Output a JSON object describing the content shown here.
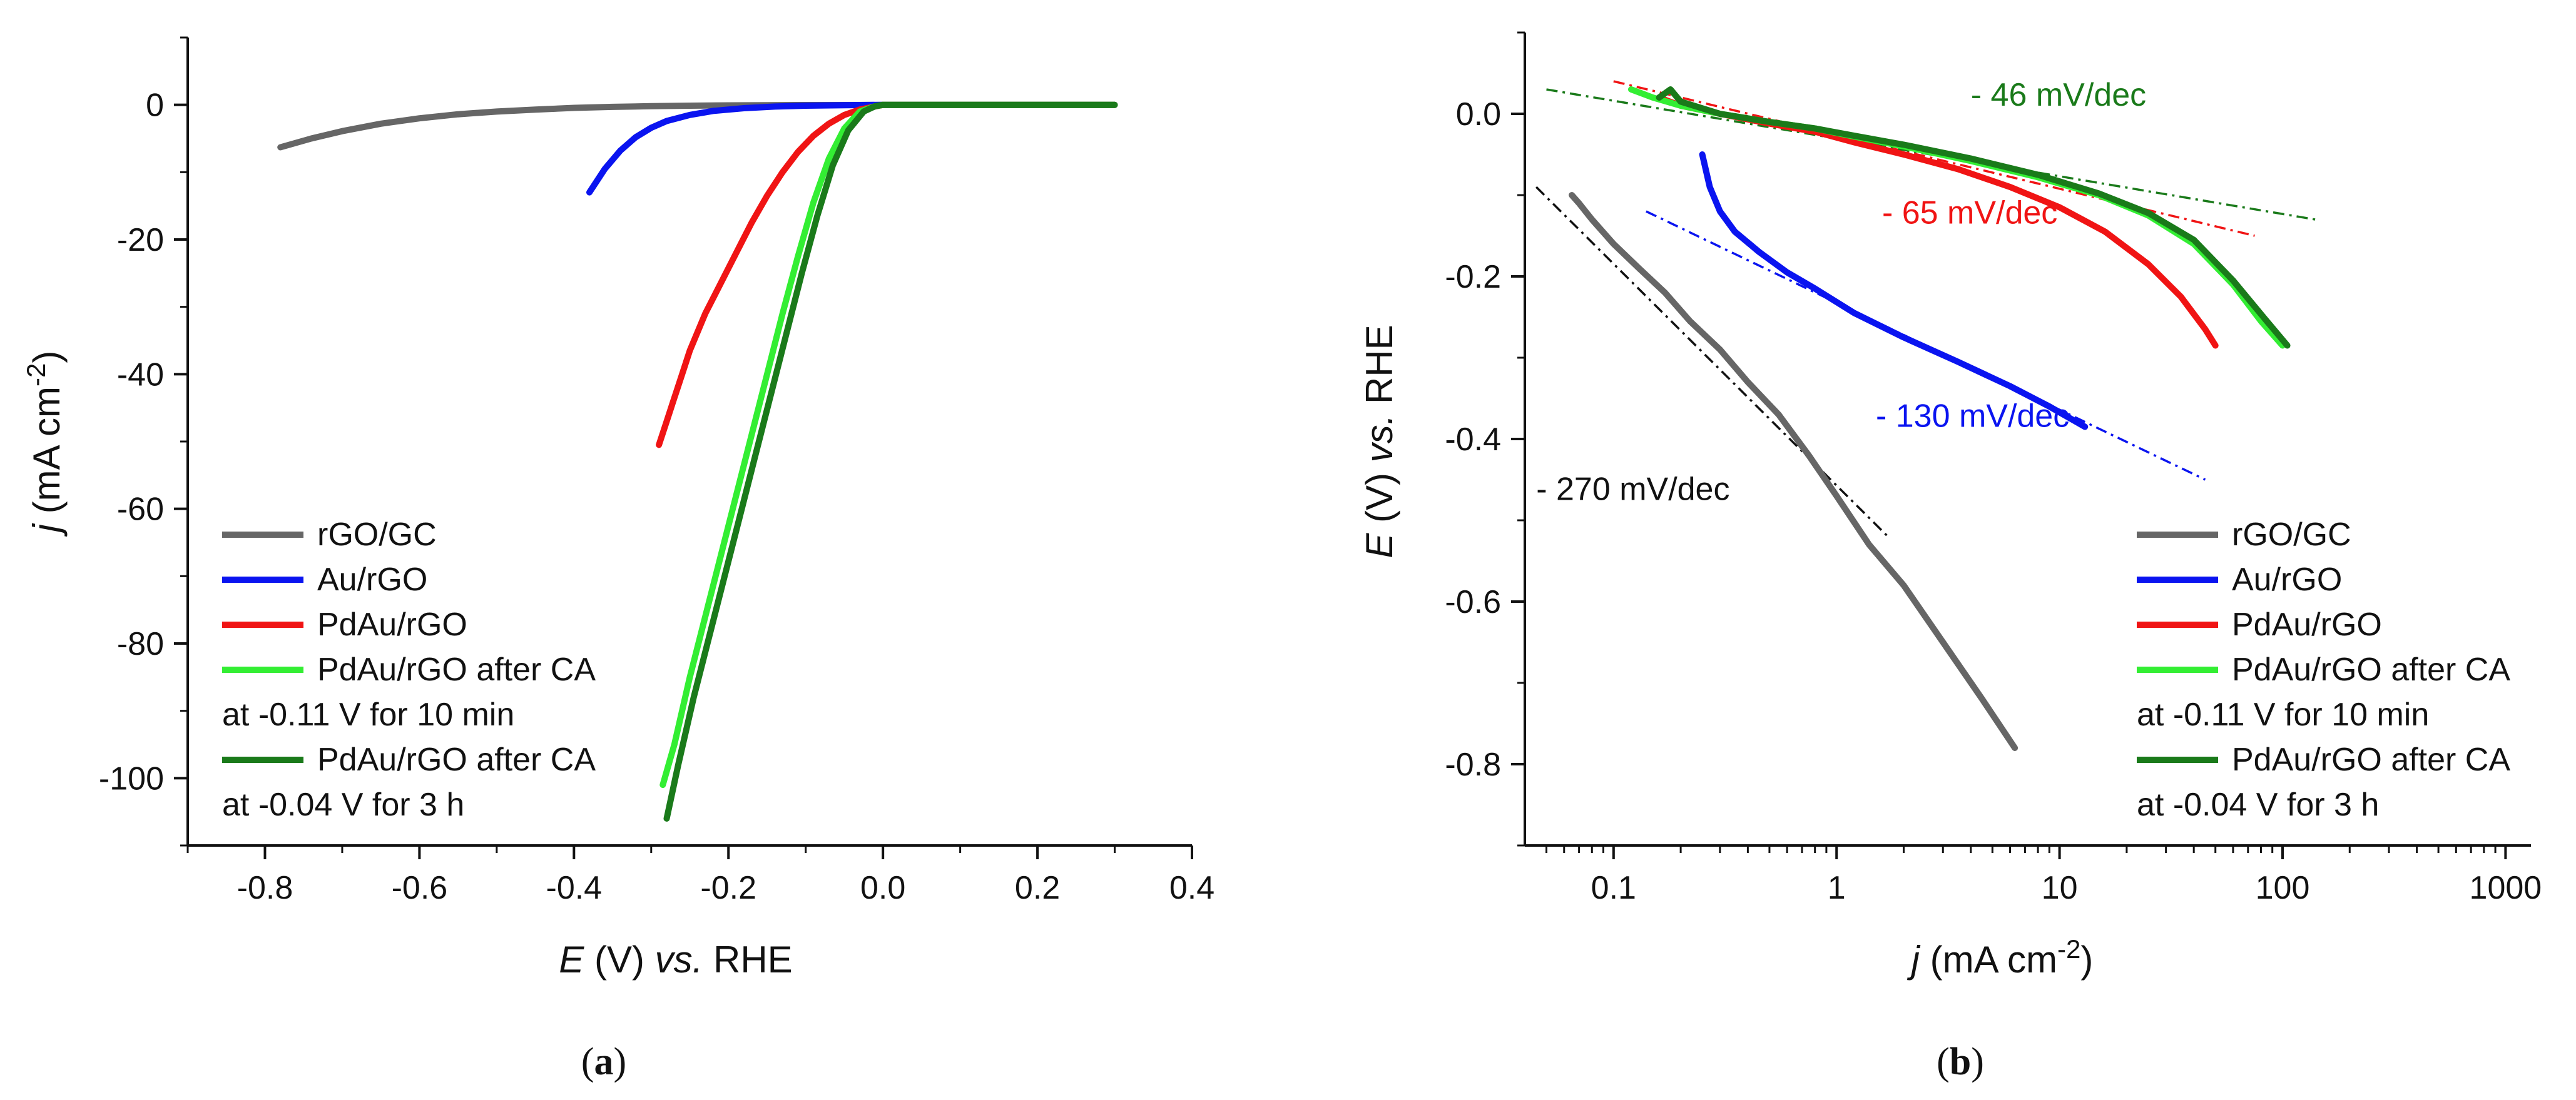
{
  "chart_data": [
    {
      "type": "line",
      "panel_label": "(a)",
      "xlabel_parts": [
        "E",
        " (V) ",
        "vs.",
        " RHE"
      ],
      "ylabel_parts": [
        "j",
        " (mA cm",
        "-2",
        ")"
      ],
      "xlim": [
        -0.9,
        0.4
      ],
      "ylim": [
        -110,
        10
      ],
      "xticks": [
        -0.8,
        -0.6,
        -0.4,
        -0.2,
        0.0,
        0.2,
        0.4
      ],
      "xtick_labels": [
        "-0.8",
        "-0.6",
        "-0.4",
        "-0.2",
        "0.0",
        "0.2",
        "0.4"
      ],
      "yticks": [
        0,
        -20,
        -40,
        -60,
        -80,
        -100
      ],
      "ytick_labels": [
        "0",
        "-20",
        "-40",
        "-60",
        "-80",
        "-100"
      ],
      "legend": {
        "position": "bottom-left",
        "entries": [
          {
            "label": "rGO/GC",
            "color": "#666666"
          },
          {
            "label": "Au/rGO",
            "color": "#0a14f0"
          },
          {
            "label": "PdAu/rGO",
            "color": "#f01414"
          },
          {
            "label": "PdAu/rGO after CA",
            "sublabel": "at -0.11 V for 10 min",
            "color": "#33ee33"
          },
          {
            "label": "PdAu/rGO after CA",
            "sublabel": "at -0.04 V for 3 h",
            "color": "#1a7a1a"
          }
        ]
      },
      "series": [
        {
          "name": "rGO/GC",
          "color": "#666666",
          "x": [
            -0.78,
            -0.74,
            -0.7,
            -0.65,
            -0.6,
            -0.55,
            -0.5,
            -0.45,
            -0.4,
            -0.35,
            -0.3,
            -0.25,
            -0.2,
            -0.15,
            -0.1,
            0.0,
            0.1,
            0.2,
            0.3
          ],
          "y": [
            -6.3,
            -5.0,
            -3.9,
            -2.8,
            -2.0,
            -1.4,
            -1.0,
            -0.7,
            -0.45,
            -0.3,
            -0.2,
            -0.12,
            -0.08,
            -0.05,
            -0.03,
            -0.01,
            0.0,
            0.0,
            0.0
          ]
        },
        {
          "name": "Au/rGO",
          "color": "#0a14f0",
          "x": [
            -0.38,
            -0.36,
            -0.34,
            -0.32,
            -0.3,
            -0.28,
            -0.25,
            -0.22,
            -0.18,
            -0.14,
            -0.1,
            -0.05,
            0.0,
            0.1,
            0.2,
            0.3
          ],
          "y": [
            -13.0,
            -9.5,
            -6.8,
            -4.8,
            -3.4,
            -2.4,
            -1.5,
            -0.9,
            -0.5,
            -0.25,
            -0.12,
            -0.05,
            0.0,
            0.0,
            0.0,
            0.0
          ]
        },
        {
          "name": "PdAu/rGO",
          "color": "#f01414",
          "x": [
            -0.29,
            -0.28,
            -0.27,
            -0.26,
            -0.25,
            -0.23,
            -0.21,
            -0.19,
            -0.17,
            -0.15,
            -0.13,
            -0.11,
            -0.09,
            -0.07,
            -0.05,
            -0.03,
            0.0,
            0.1,
            0.2,
            0.3
          ],
          "y": [
            -50.5,
            -47.0,
            -43.5,
            -40.0,
            -36.5,
            -31.0,
            -26.5,
            -22.0,
            -17.5,
            -13.5,
            -10.0,
            -7.0,
            -4.6,
            -2.8,
            -1.5,
            -0.7,
            0.0,
            0.0,
            0.0,
            0.0
          ]
        },
        {
          "name": "PdAu/rGO after CA at -0.11 V for 10 min",
          "color": "#33ee33",
          "x": [
            -0.285,
            -0.27,
            -0.25,
            -0.23,
            -0.21,
            -0.19,
            -0.17,
            -0.15,
            -0.13,
            -0.11,
            -0.09,
            -0.07,
            -0.05,
            -0.03,
            -0.01,
            0.0,
            0.1,
            0.2,
            0.3
          ],
          "y": [
            -101.0,
            -95.0,
            -85.0,
            -76.0,
            -67.0,
            -58.0,
            -49.0,
            -40.0,
            -31.0,
            -22.5,
            -14.5,
            -8.0,
            -3.5,
            -1.0,
            -0.2,
            0.0,
            0.0,
            0.0,
            0.0
          ]
        },
        {
          "name": "PdAu/rGO after CA at -0.04 V for 3 h",
          "color": "#1a7a1a",
          "x": [
            -0.28,
            -0.265,
            -0.245,
            -0.225,
            -0.205,
            -0.185,
            -0.165,
            -0.145,
            -0.125,
            -0.105,
            -0.085,
            -0.065,
            -0.045,
            -0.025,
            -0.01,
            0.0,
            0.1,
            0.2,
            0.3
          ],
          "y": [
            -106.0,
            -98.0,
            -88.0,
            -79.0,
            -70.0,
            -61.0,
            -52.0,
            -43.0,
            -34.0,
            -25.0,
            -16.5,
            -9.0,
            -3.8,
            -1.0,
            -0.2,
            0.0,
            0.0,
            0.0,
            0.0
          ]
        }
      ]
    },
    {
      "type": "line",
      "panel_label": "(b)",
      "xlabel_parts": [
        "j",
        " (mA cm",
        "-2",
        ")"
      ],
      "ylabel_parts": [
        "E",
        " (V) ",
        "vs.",
        " RHE"
      ],
      "xscale": "log",
      "xlim": [
        0.04,
        1300
      ],
      "ylim": [
        -0.9,
        0.1
      ],
      "xticks": [
        0.1,
        1,
        10,
        100,
        1000
      ],
      "xtick_labels": [
        "0.1",
        "1",
        "10",
        "100",
        "1000"
      ],
      "yticks": [
        0.0,
        -0.2,
        -0.4,
        -0.6,
        -0.8
      ],
      "ytick_labels": [
        "0.0",
        "-0.2",
        "-0.4",
        "-0.6",
        "-0.8"
      ],
      "legend": {
        "position": "bottom-right",
        "entries": [
          {
            "label": "rGO/GC",
            "color": "#666666"
          },
          {
            "label": "Au/rGO",
            "color": "#0a14f0"
          },
          {
            "label": "PdAu/rGO",
            "color": "#f01414"
          },
          {
            "label": "PdAu/rGO after CA",
            "sublabel": "at -0.11 V for 10 min",
            "color": "#33ee33"
          },
          {
            "label": "PdAu/rGO after CA",
            "sublabel": "at -0.04 V for 3 h",
            "color": "#1a7a1a"
          }
        ]
      },
      "annotations": [
        {
          "text": "- 46 mV/dec",
          "color": "#1a7a1a",
          "x": 4.0,
          "y": 0.01
        },
        {
          "text": "- 65 mV/dec",
          "color": "#f01414",
          "x": 1.6,
          "y": -0.135
        },
        {
          "text": "- 130 mV/dec",
          "color": "#0a14f0",
          "x": 1.5,
          "y": -0.385
        },
        {
          "text": "- 270 mV/dec",
          "color": "#111111",
          "x": 0.045,
          "y": -0.475
        }
      ],
      "fit_lines": [
        {
          "name": "Tafel fit rGO/GC",
          "color": "#111111",
          "x": [
            0.045,
            1.7
          ],
          "y": [
            -0.09,
            -0.52
          ]
        },
        {
          "name": "Tafel fit Au/rGO",
          "color": "#0a14f0",
          "x": [
            0.14,
            45
          ],
          "y": [
            -0.12,
            -0.45
          ]
        },
        {
          "name": "Tafel fit PdAu/rGO",
          "color": "#f01414",
          "x": [
            0.1,
            75
          ],
          "y": [
            0.04,
            -0.15
          ]
        },
        {
          "name": "Tafel fit PdAu/rGO after CA",
          "color": "#1a7a1a",
          "x": [
            0.05,
            140
          ],
          "y": [
            0.03,
            -0.13
          ]
        }
      ],
      "series": [
        {
          "name": "rGO/GC",
          "color": "#666666",
          "x": [
            0.065,
            0.07,
            0.08,
            0.1,
            0.13,
            0.17,
            0.22,
            0.3,
            0.4,
            0.55,
            0.75,
            1.0,
            1.4,
            2.0,
            3.0,
            4.5,
            6.3
          ],
          "y": [
            -0.1,
            -0.11,
            -0.13,
            -0.16,
            -0.19,
            -0.22,
            -0.255,
            -0.29,
            -0.33,
            -0.37,
            -0.42,
            -0.47,
            -0.53,
            -0.58,
            -0.65,
            -0.72,
            -0.78
          ]
        },
        {
          "name": "Au/rGO",
          "color": "#0a14f0",
          "x": [
            0.25,
            0.27,
            0.3,
            0.35,
            0.45,
            0.6,
            0.8,
            1.2,
            2.0,
            3.5,
            6.0,
            9.0,
            13.0
          ],
          "y": [
            -0.05,
            -0.09,
            -0.12,
            -0.145,
            -0.17,
            -0.195,
            -0.215,
            -0.245,
            -0.275,
            -0.305,
            -0.335,
            -0.36,
            -0.385
          ]
        },
        {
          "name": "PdAu/rGO",
          "color": "#f01414",
          "x": [
            0.16,
            0.2,
            0.3,
            0.5,
            0.8,
            1.2,
            2.0,
            3.5,
            6.0,
            10.0,
            16.0,
            25.0,
            35.0,
            45.0,
            50.0
          ],
          "y": [
            0.02,
            0.01,
            -0.0,
            -0.012,
            -0.022,
            -0.035,
            -0.05,
            -0.068,
            -0.09,
            -0.115,
            -0.145,
            -0.185,
            -0.225,
            -0.265,
            -0.285
          ]
        },
        {
          "name": "PdAu/rGO after CA at -0.11 V for 10 min",
          "color": "#33ee33",
          "x": [
            0.12,
            0.15,
            0.2,
            0.3,
            0.5,
            0.8,
            1.2,
            2.0,
            4.0,
            8.0,
            15.0,
            25.0,
            40.0,
            60.0,
            80.0,
            100.0
          ],
          "y": [
            0.03,
            0.02,
            0.01,
            0.0,
            -0.01,
            -0.018,
            -0.028,
            -0.04,
            -0.058,
            -0.078,
            -0.1,
            -0.125,
            -0.16,
            -0.21,
            -0.255,
            -0.285
          ]
        },
        {
          "name": "PdAu/rGO after CA at -0.04 V for 3 h",
          "color": "#1a7a1a",
          "x": [
            0.16,
            0.18,
            0.2,
            0.3,
            0.5,
            0.8,
            1.2,
            2.0,
            4.0,
            8.0,
            15.0,
            25.0,
            40.0,
            60.0,
            85.0,
            105.0
          ],
          "y": [
            0.02,
            0.03,
            0.015,
            0.0,
            -0.01,
            -0.018,
            -0.027,
            -0.038,
            -0.055,
            -0.075,
            -0.098,
            -0.122,
            -0.155,
            -0.205,
            -0.255,
            -0.285
          ]
        }
      ]
    }
  ]
}
